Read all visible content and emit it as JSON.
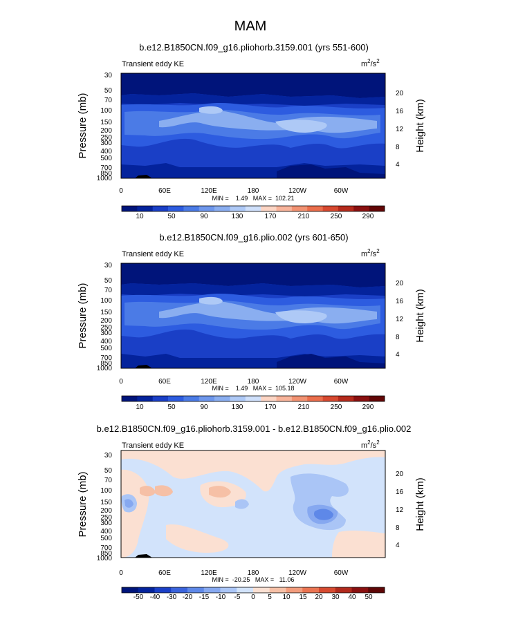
{
  "page_title": "MAM",
  "colors": {
    "blues": [
      "#00147a",
      "#04239c",
      "#1a3fc6",
      "#2d5ce0",
      "#4b7be6",
      "#6e97ec",
      "#8aaef0",
      "#aec9f6",
      "#cfe0fb"
    ],
    "reds": [
      "#fcd5c4",
      "#f8b49b",
      "#f29272",
      "#eb6e4c",
      "#d74930",
      "#b52a1c",
      "#8a1010",
      "#620606"
    ],
    "diff_seq": [
      "#00147a",
      "#04239c",
      "#1a3fc6",
      "#3a63dc",
      "#5e88e8",
      "#86a8f0",
      "#aac5f6",
      "#d2e3fb",
      "#fbe0d2",
      "#f6c0a6",
      "#f29c7c",
      "#ea7452",
      "#d64a30",
      "#b12a1c",
      "#891010",
      "#5e0606"
    ]
  },
  "chart_data": [
    {
      "type": "contour",
      "title": "b.e12.B1850CN.f09_g16.pliohorb.3159.001 (yrs 551-600)",
      "left_label": "Transient eddy KE",
      "units": "m²/s²",
      "unit_base": "m",
      "unit_mid": "/s",
      "unit_exp": "2",
      "ylabel": "Pressure (mb)",
      "y2label": "Height (km)",
      "y_ticks": [
        "30",
        "50",
        "70",
        "100",
        "150",
        "200",
        "250",
        "300",
        "400",
        "500",
        "700",
        "850",
        "1000"
      ],
      "y2_ticks": [
        "20",
        "16",
        "12",
        "8",
        "4"
      ],
      "x_ticks": [
        "0",
        "60E",
        "120E",
        "180",
        "120W",
        "60W"
      ],
      "xlim": [
        0,
        360
      ],
      "minmax": "MIN =    1.49   MAX =  102.21",
      "min": 1.49,
      "max": 102.21,
      "colorbar_labels": [
        "10",
        "50",
        "90",
        "130",
        "170",
        "210",
        "250",
        "290"
      ]
    },
    {
      "type": "contour",
      "title": "b.e12.B1850CN.f09_g16.plio.002 (yrs 601-650)",
      "left_label": "Transient eddy KE",
      "units": "m²/s²",
      "unit_base": "m",
      "unit_mid": "/s",
      "unit_exp": "2",
      "ylabel": "Pressure (mb)",
      "y2label": "Height (km)",
      "y_ticks": [
        "30",
        "50",
        "70",
        "100",
        "150",
        "200",
        "250",
        "300",
        "400",
        "500",
        "700",
        "850",
        "1000"
      ],
      "y2_ticks": [
        "20",
        "16",
        "12",
        "8",
        "4"
      ],
      "x_ticks": [
        "0",
        "60E",
        "120E",
        "180",
        "120W",
        "60W"
      ],
      "xlim": [
        0,
        360
      ],
      "minmax": "MIN =    1.49   MAX =  105.18",
      "min": 1.49,
      "max": 105.18,
      "colorbar_labels": [
        "10",
        "50",
        "90",
        "130",
        "170",
        "210",
        "250",
        "290"
      ]
    },
    {
      "type": "contour",
      "title": "b.e12.B1850CN.f09_g16.pliohorb.3159.001 - b.e12.B1850CN.f09_g16.plio.002",
      "left_label": "Transient eddy KE",
      "units": "m²/s²",
      "unit_base": "m",
      "unit_mid": "/s",
      "unit_exp": "2",
      "ylabel": "Pressure (mb)",
      "y2label": "Height (km)",
      "y_ticks": [
        "30",
        "50",
        "70",
        "100",
        "150",
        "200",
        "250",
        "300",
        "400",
        "500",
        "700",
        "850",
        "1000"
      ],
      "y2_ticks": [
        "20",
        "16",
        "12",
        "8",
        "4"
      ],
      "x_ticks": [
        "0",
        "60E",
        "120E",
        "180",
        "120W",
        "60W"
      ],
      "xlim": [
        0,
        360
      ],
      "minmax": "MIN =  -20.25   MAX =   11.06",
      "min": -20.25,
      "max": 11.06,
      "colorbar_labels": [
        "-50",
        "-40",
        "-30",
        "-20",
        "-15",
        "-10",
        "-5",
        "0",
        "5",
        "10",
        "15",
        "20",
        "30",
        "40",
        "50"
      ]
    }
  ]
}
